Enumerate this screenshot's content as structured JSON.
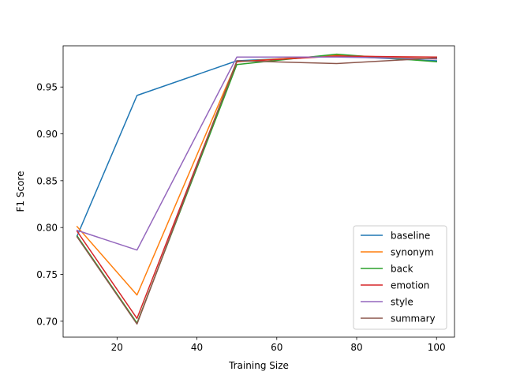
{
  "chart_data": {
    "type": "line",
    "title": "",
    "xlabel": "Training Size",
    "ylabel": "F1 Score",
    "xlim": [
      6.5,
      104.5
    ],
    "ylim": [
      0.683,
      0.994
    ],
    "x": [
      10,
      25,
      50,
      75,
      100
    ],
    "xticks": [
      20,
      40,
      60,
      80,
      100
    ],
    "yticks": [
      0.7,
      0.75,
      0.8,
      0.85,
      0.9,
      0.95
    ],
    "xtick_labels": [
      "20",
      "40",
      "60",
      "80",
      "100"
    ],
    "ytick_labels": [
      "0.70",
      "0.75",
      "0.80",
      "0.85",
      "0.90",
      "0.95"
    ],
    "grid": false,
    "legend_position": "lower-right",
    "series": [
      {
        "name": "baseline",
        "color": "#1f77b4",
        "values": [
          0.791,
          0.941,
          0.978,
          0.983,
          0.978
        ]
      },
      {
        "name": "synonym",
        "color": "#ff7f0e",
        "values": [
          0.801,
          0.728,
          0.977,
          0.984,
          0.98
        ]
      },
      {
        "name": "back",
        "color": "#2ca02c",
        "values": [
          0.791,
          0.698,
          0.974,
          0.985,
          0.977
        ]
      },
      {
        "name": "emotion",
        "color": "#d62728",
        "values": [
          0.796,
          0.703,
          0.977,
          0.983,
          0.982
        ]
      },
      {
        "name": "style",
        "color": "#9467bd",
        "values": [
          0.797,
          0.776,
          0.982,
          0.982,
          0.98
        ]
      },
      {
        "name": "summary",
        "color": "#8c564b",
        "values": [
          0.79,
          0.697,
          0.978,
          0.975,
          0.981
        ]
      }
    ]
  }
}
